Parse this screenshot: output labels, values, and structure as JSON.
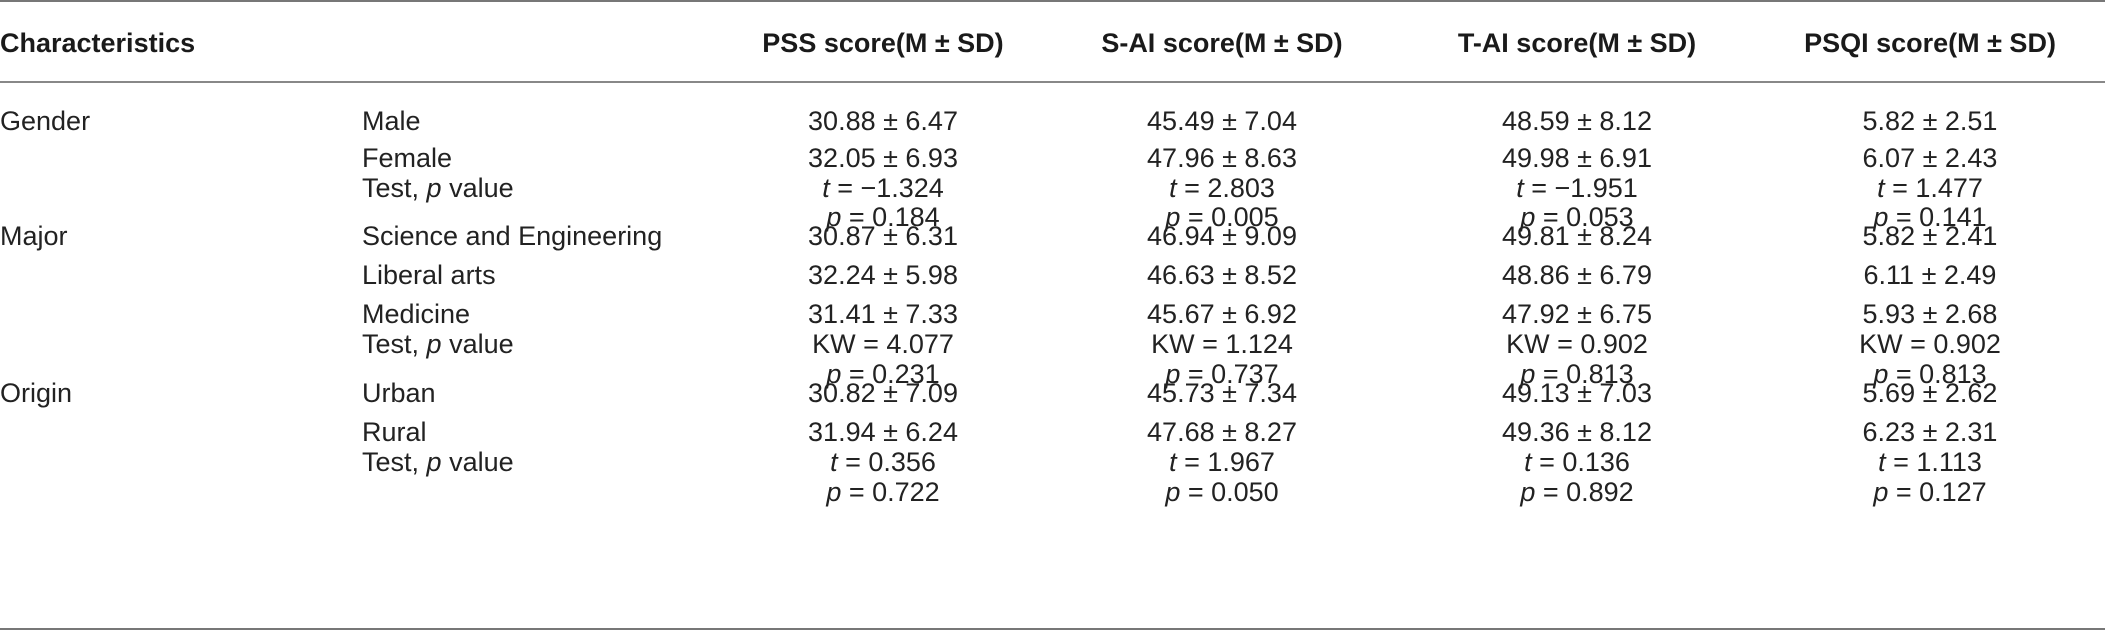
{
  "headers": {
    "characteristics": "Characteristics",
    "pss": "PSS score(M ± SD)",
    "sai": "S-AI score(M ± SD)",
    "tai": "T-AI score(M ± SD)",
    "psqi": "PSQI score(M ± SD)"
  },
  "groups": [
    {
      "name": "Gender",
      "rows": [
        {
          "label": "Male",
          "pss": "30.88 ± 6.47",
          "sai": "45.49 ± 7.04",
          "tai": "48.59 ± 8.12",
          "psqi": "5.82 ± 2.51"
        },
        {
          "label": "Female",
          "pss": "32.05 ± 6.93",
          "sai": "47.96 ± 8.63",
          "tai": "49.98 ± 6.91",
          "psqi": "6.07 ± 2.43"
        }
      ],
      "test": {
        "label_prefix": "Test, ",
        "label_p": "p",
        "label_suffix": " value",
        "stat_symbol": "t",
        "stat": {
          "pss": " = −1.324",
          "sai": " = 2.803",
          "tai": " = −1.951",
          "psqi": " = 1.477"
        },
        "p_symbol": "p",
        "p": {
          "pss": " = 0.184",
          "sai": " = 0.005",
          "tai": " = 0.053",
          "psqi": " = 0.141"
        }
      }
    },
    {
      "name": "Major",
      "rows": [
        {
          "label": "Science and Engineering",
          "pss": "30.87 ± 6.31",
          "sai": "46.94 ± 9.09",
          "tai": "49.81 ± 8.24",
          "psqi": "5.82 ± 2.41"
        },
        {
          "label": "Liberal arts",
          "pss": "32.24 ± 5.98",
          "sai": "46.63 ± 8.52",
          "tai": "48.86 ± 6.79",
          "psqi": "6.11 ± 2.49"
        },
        {
          "label": "Medicine",
          "pss": "31.41 ± 7.33",
          "sai": "45.67 ± 6.92",
          "tai": "47.92 ± 6.75",
          "psqi": "5.93 ± 2.68"
        }
      ],
      "test": {
        "label_prefix": "Test, ",
        "label_p": "p",
        "label_suffix": " value",
        "stat_symbol": "KW",
        "stat": {
          "pss": " = 4.077",
          "sai": " = 1.124",
          "tai": " = 0.902",
          "psqi": " = 0.902"
        },
        "p_symbol": "p",
        "p": {
          "pss": " = 0.231",
          "sai": " = 0.737",
          "tai": " = 0.813",
          "psqi": " = 0.813"
        }
      }
    },
    {
      "name": "Origin",
      "rows": [
        {
          "label": "Urban",
          "pss": "30.82 ± 7.09",
          "sai": "45.73 ± 7.34",
          "tai": "49.13 ± 7.03",
          "psqi": "5.69 ± 2.62"
        },
        {
          "label": "Rural",
          "pss": "31.94 ± 6.24",
          "sai": "47.68 ± 8.27",
          "tai": "49.36 ± 8.12",
          "psqi": "6.23 ± 2.31"
        }
      ],
      "test": {
        "label_prefix": "Test, ",
        "label_p": "p",
        "label_suffix": " value",
        "stat_symbol": "t",
        "stat": {
          "pss": " = 0.356",
          "sai": " = 1.967",
          "tai": " = 0.136",
          "psqi": " = 1.113"
        },
        "p_symbol": "p",
        "p": {
          "pss": " = 0.722",
          "sai": " = 0.050",
          "tai": " = 0.892",
          "psqi": " = 0.127"
        }
      }
    }
  ]
}
